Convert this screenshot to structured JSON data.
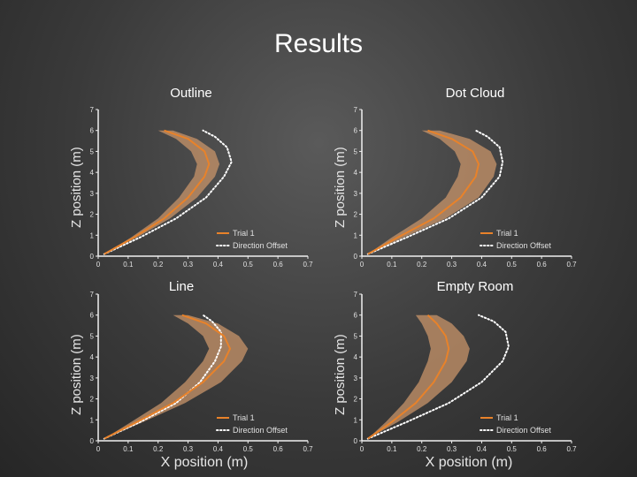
{
  "slide": {
    "title": "Results"
  },
  "colors": {
    "trial": "#e8822a",
    "band": "#c8946a",
    "offset": "#ffffff",
    "axis": "#f0f0f0"
  },
  "chart_data": [
    {
      "type": "line",
      "title": "Outline",
      "xlabel": "",
      "ylabel": "Z position (m)",
      "xlim": [
        0,
        0.7
      ],
      "ylim": [
        0,
        7
      ],
      "xticks": [
        "0",
        "0.1",
        "0.2",
        "0.3",
        "0.4",
        "0.5",
        "0.6",
        "0.7"
      ],
      "yticks": [
        "0",
        "1",
        "2",
        "3",
        "4",
        "5",
        "6",
        "7"
      ],
      "legend": [
        "Trial 1",
        "Direction Offset"
      ],
      "series": [
        {
          "name": "Trial 1",
          "x": [
            0.02,
            0.12,
            0.22,
            0.3,
            0.355,
            0.37,
            0.355,
            0.3,
            0.22
          ],
          "y": [
            0.1,
            0.9,
            1.8,
            2.8,
            3.8,
            4.4,
            5.0,
            5.6,
            6.0
          ]
        },
        {
          "name": "Band lower",
          "x": [
            0.02,
            0.11,
            0.2,
            0.27,
            0.32,
            0.33,
            0.31,
            0.26,
            0.2
          ],
          "y": [
            0.1,
            0.9,
            1.8,
            2.8,
            3.8,
            4.4,
            5.0,
            5.6,
            6.0
          ]
        },
        {
          "name": "Band upper",
          "x": [
            0.02,
            0.13,
            0.24,
            0.33,
            0.39,
            0.405,
            0.39,
            0.33,
            0.25
          ],
          "y": [
            0.1,
            0.9,
            1.8,
            2.8,
            3.8,
            4.4,
            5.0,
            5.6,
            6.0
          ]
        },
        {
          "name": "Direction Offset",
          "x": [
            0.02,
            0.14,
            0.26,
            0.36,
            0.42,
            0.445,
            0.43,
            0.39,
            0.35
          ],
          "y": [
            0.1,
            0.9,
            1.8,
            2.8,
            3.8,
            4.5,
            5.2,
            5.7,
            6.0
          ]
        }
      ]
    },
    {
      "type": "line",
      "title": "Dot Cloud",
      "xlabel": "",
      "ylabel": "Z position (m)",
      "xlim": [
        0,
        0.7
      ],
      "ylim": [
        0,
        7
      ],
      "xticks": [
        "0",
        "0.1",
        "0.2",
        "0.3",
        "0.4",
        "0.5",
        "0.6",
        "0.7"
      ],
      "yticks": [
        "0",
        "1",
        "2",
        "3",
        "4",
        "5",
        "6",
        "7"
      ],
      "legend": [
        "Trial 1",
        "Direction Offset"
      ],
      "series": [
        {
          "name": "Trial 1",
          "x": [
            0.02,
            0.12,
            0.24,
            0.33,
            0.38,
            0.39,
            0.37,
            0.3,
            0.22
          ],
          "y": [
            0.1,
            0.9,
            1.8,
            2.8,
            3.8,
            4.4,
            5.0,
            5.6,
            6.0
          ]
        },
        {
          "name": "Band lower",
          "x": [
            0.02,
            0.1,
            0.2,
            0.28,
            0.32,
            0.33,
            0.31,
            0.26,
            0.2
          ],
          "y": [
            0.1,
            0.9,
            1.8,
            2.8,
            3.8,
            4.4,
            5.0,
            5.6,
            6.0
          ]
        },
        {
          "name": "Band upper",
          "x": [
            0.02,
            0.14,
            0.28,
            0.39,
            0.44,
            0.45,
            0.43,
            0.36,
            0.26
          ],
          "y": [
            0.1,
            0.9,
            1.8,
            2.8,
            3.8,
            4.4,
            5.0,
            5.6,
            6.0
          ]
        },
        {
          "name": "Direction Offset",
          "x": [
            0.02,
            0.15,
            0.29,
            0.4,
            0.46,
            0.47,
            0.46,
            0.42,
            0.38
          ],
          "y": [
            0.1,
            0.9,
            1.8,
            2.8,
            3.8,
            4.5,
            5.2,
            5.7,
            6.0
          ]
        }
      ]
    },
    {
      "type": "line",
      "title": "Line",
      "xlabel": "X position (m)",
      "ylabel": "Z position (m)",
      "xlim": [
        0,
        0.7
      ],
      "ylim": [
        0,
        7
      ],
      "xticks": [
        "0",
        "0.1",
        "0.2",
        "0.3",
        "0.4",
        "0.5",
        "0.6",
        "0.7"
      ],
      "yticks": [
        "0",
        "1",
        "2",
        "3",
        "4",
        "5",
        "6",
        "7"
      ],
      "legend": [
        "Trial 1",
        "Direction Offset"
      ],
      "series": [
        {
          "name": "Trial 1",
          "x": [
            0.02,
            0.13,
            0.25,
            0.35,
            0.42,
            0.44,
            0.42,
            0.36,
            0.28
          ],
          "y": [
            0.1,
            0.9,
            1.8,
            2.8,
            3.8,
            4.4,
            5.0,
            5.6,
            6.0
          ]
        },
        {
          "name": "Band lower",
          "x": [
            0.02,
            0.11,
            0.21,
            0.29,
            0.35,
            0.37,
            0.35,
            0.3,
            0.25
          ],
          "y": [
            0.1,
            0.9,
            1.8,
            2.8,
            3.8,
            4.4,
            5.0,
            5.6,
            6.0
          ]
        },
        {
          "name": "Band upper",
          "x": [
            0.02,
            0.15,
            0.29,
            0.41,
            0.48,
            0.5,
            0.47,
            0.4,
            0.3
          ],
          "y": [
            0.1,
            0.9,
            1.8,
            2.8,
            3.8,
            4.4,
            5.0,
            5.6,
            6.0
          ]
        },
        {
          "name": "Direction Offset",
          "x": [
            0.02,
            0.14,
            0.26,
            0.34,
            0.39,
            0.41,
            0.41,
            0.38,
            0.35
          ],
          "y": [
            0.1,
            0.9,
            1.8,
            2.8,
            3.8,
            4.5,
            5.2,
            5.7,
            6.0
          ]
        }
      ]
    },
    {
      "type": "line",
      "title": "Empty Room",
      "xlabel": "X position (m)",
      "ylabel": "Z position (m)",
      "xlim": [
        0,
        0.7
      ],
      "ylim": [
        0,
        7
      ],
      "xticks": [
        "0",
        "0.1",
        "0.2",
        "0.3",
        "0.4",
        "0.5",
        "0.6",
        "0.7"
      ],
      "yticks": [
        "0",
        "1",
        "2",
        "3",
        "4",
        "5",
        "6",
        "7"
      ],
      "legend": [
        "Trial 1",
        "Direction Offset"
      ],
      "series": [
        {
          "name": "Trial 1",
          "x": [
            0.02,
            0.1,
            0.18,
            0.24,
            0.28,
            0.29,
            0.28,
            0.25,
            0.22
          ],
          "y": [
            0.1,
            0.9,
            1.8,
            2.8,
            3.8,
            4.4,
            5.0,
            5.6,
            6.0
          ]
        },
        {
          "name": "Band lower",
          "x": [
            0.02,
            0.08,
            0.14,
            0.19,
            0.22,
            0.23,
            0.22,
            0.2,
            0.18
          ],
          "y": [
            0.1,
            0.9,
            1.8,
            2.8,
            3.8,
            4.4,
            5.0,
            5.6,
            6.0
          ]
        },
        {
          "name": "Band upper",
          "x": [
            0.02,
            0.12,
            0.22,
            0.3,
            0.35,
            0.36,
            0.34,
            0.3,
            0.25
          ],
          "y": [
            0.1,
            0.9,
            1.8,
            2.8,
            3.8,
            4.4,
            5.0,
            5.6,
            6.0
          ]
        },
        {
          "name": "Direction Offset",
          "x": [
            0.02,
            0.15,
            0.29,
            0.4,
            0.47,
            0.49,
            0.48,
            0.44,
            0.39
          ],
          "y": [
            0.1,
            0.9,
            1.8,
            2.8,
            3.8,
            4.5,
            5.2,
            5.7,
            6.0
          ]
        }
      ]
    }
  ]
}
